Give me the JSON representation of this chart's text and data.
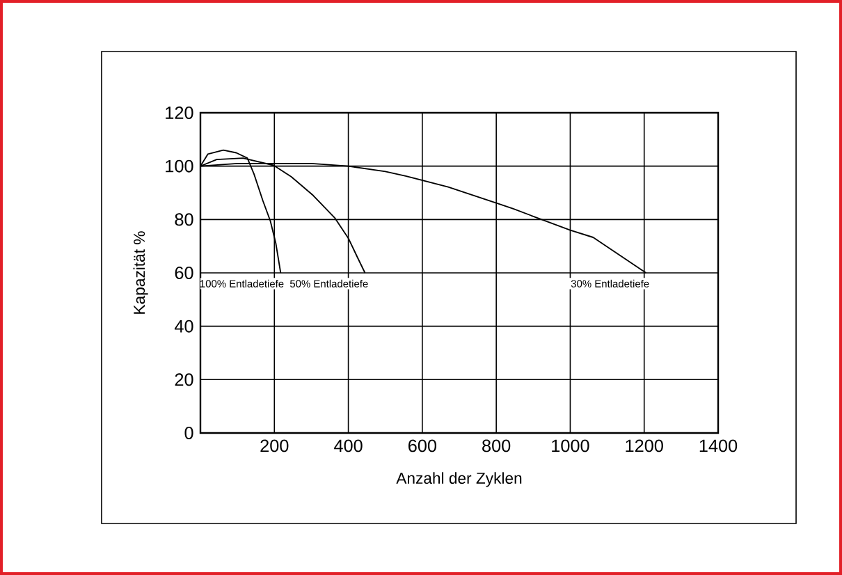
{
  "chart_data": {
    "type": "line",
    "xlabel": "Anzahl  der  Zyklen",
    "ylabel": "Kapazität  %",
    "xlim": [
      0,
      1400
    ],
    "ylim": [
      0,
      120
    ],
    "xticks": [
      {
        "value": 0,
        "label": null
      },
      200,
      400,
      600,
      800,
      1000,
      1200,
      1400
    ],
    "yticks": [
      0,
      20,
      40,
      60,
      80,
      100,
      120
    ],
    "grid": true,
    "legend": false,
    "marker": "none",
    "line_style": "solid",
    "series": [
      {
        "name": "100%  Entladetiefe",
        "color": "#000000",
        "x": [
          0,
          20,
          62,
          97,
          127,
          145,
          169,
          189,
          204,
          217
        ],
        "values": [
          100,
          104.5,
          106,
          105,
          103,
          97,
          87,
          79.5,
          71,
          60
        ]
      },
      {
        "name": "50%  Entladetiefe",
        "color": "#000000",
        "x": [
          0,
          44,
          115,
          198,
          246,
          305,
          364,
          400,
          424,
          445
        ],
        "values": [
          100,
          102.5,
          103,
          100.3,
          96,
          89,
          80.5,
          73,
          66,
          60
        ]
      },
      {
        "name": "30%  Entladetiefe",
        "color": "#000000",
        "x": [
          0,
          100,
          300,
          400,
          500,
          555,
          670,
          800,
          846,
          1000,
          1062,
          1205
        ],
        "values": [
          100,
          101,
          101,
          100,
          98,
          96.3,
          92.2,
          86.2,
          84,
          76,
          73.3,
          60
        ]
      }
    ]
  }
}
